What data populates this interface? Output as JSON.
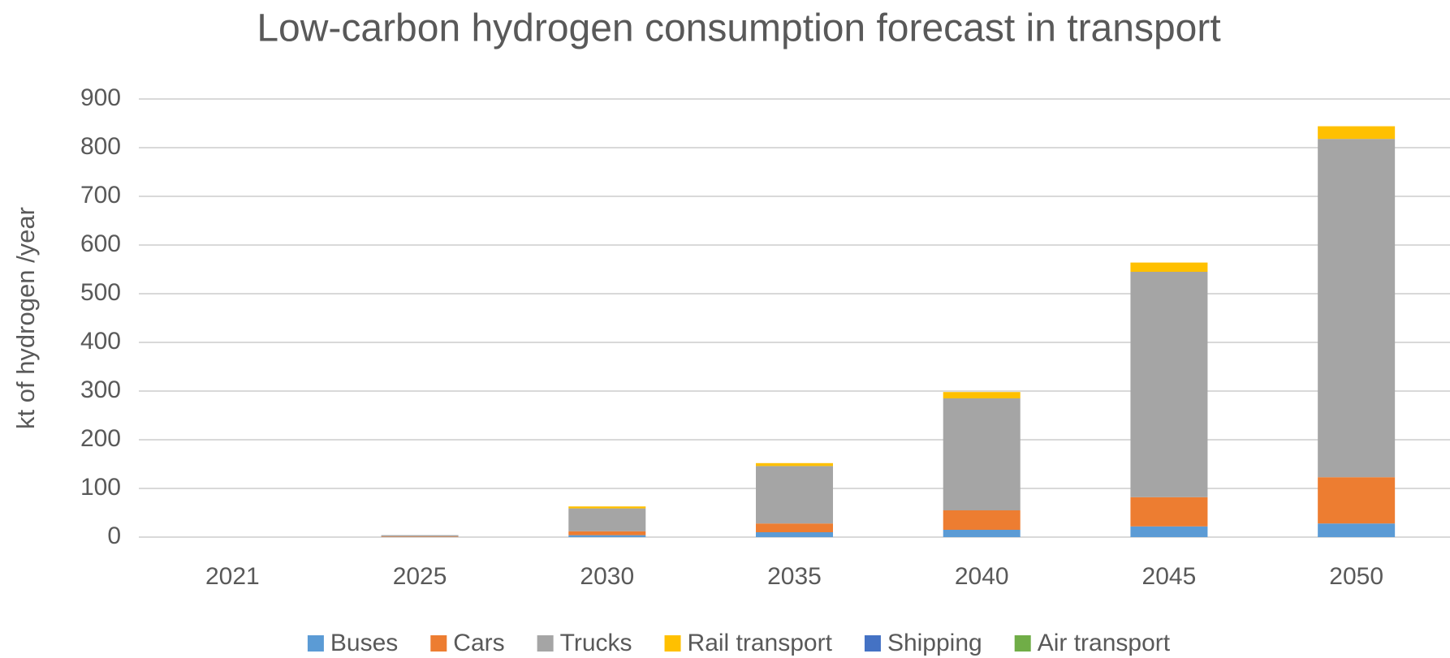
{
  "chart_data": {
    "type": "stacked_bar",
    "title": "Low-carbon hydrogen consumption forecast in transport",
    "y_label": "kt of hydrogen /year",
    "categories": [
      "2021",
      "2025",
      "2030",
      "2035",
      "2040",
      "2045",
      "2050"
    ],
    "series": [
      {
        "name": "Buses",
        "color": "#5b9bd5",
        "values": [
          0,
          0,
          4,
          10,
          15,
          22,
          28
        ]
      },
      {
        "name": "Cars",
        "color": "#ed7d31",
        "values": [
          0,
          1,
          8,
          18,
          40,
          60,
          95
        ]
      },
      {
        "name": "Trucks",
        "color": "#a5a5a5",
        "values": [
          0,
          3,
          47,
          118,
          230,
          463,
          695
        ]
      },
      {
        "name": "Rail transport",
        "color": "#ffc000",
        "values": [
          0,
          0,
          4,
          6,
          13,
          19,
          26
        ]
      },
      {
        "name": "Shipping",
        "color": "#4472c4",
        "values": [
          0,
          0,
          0,
          0,
          0,
          0,
          0
        ]
      },
      {
        "name": "Air transport",
        "color": "#70ad47",
        "values": [
          0,
          0,
          0,
          0,
          0,
          0,
          0
        ]
      }
    ],
    "ylim": [
      0,
      900
    ],
    "yticks": [
      0,
      100,
      200,
      300,
      400,
      500,
      600,
      700,
      800,
      900
    ],
    "grid": true,
    "legend": "bottom"
  }
}
